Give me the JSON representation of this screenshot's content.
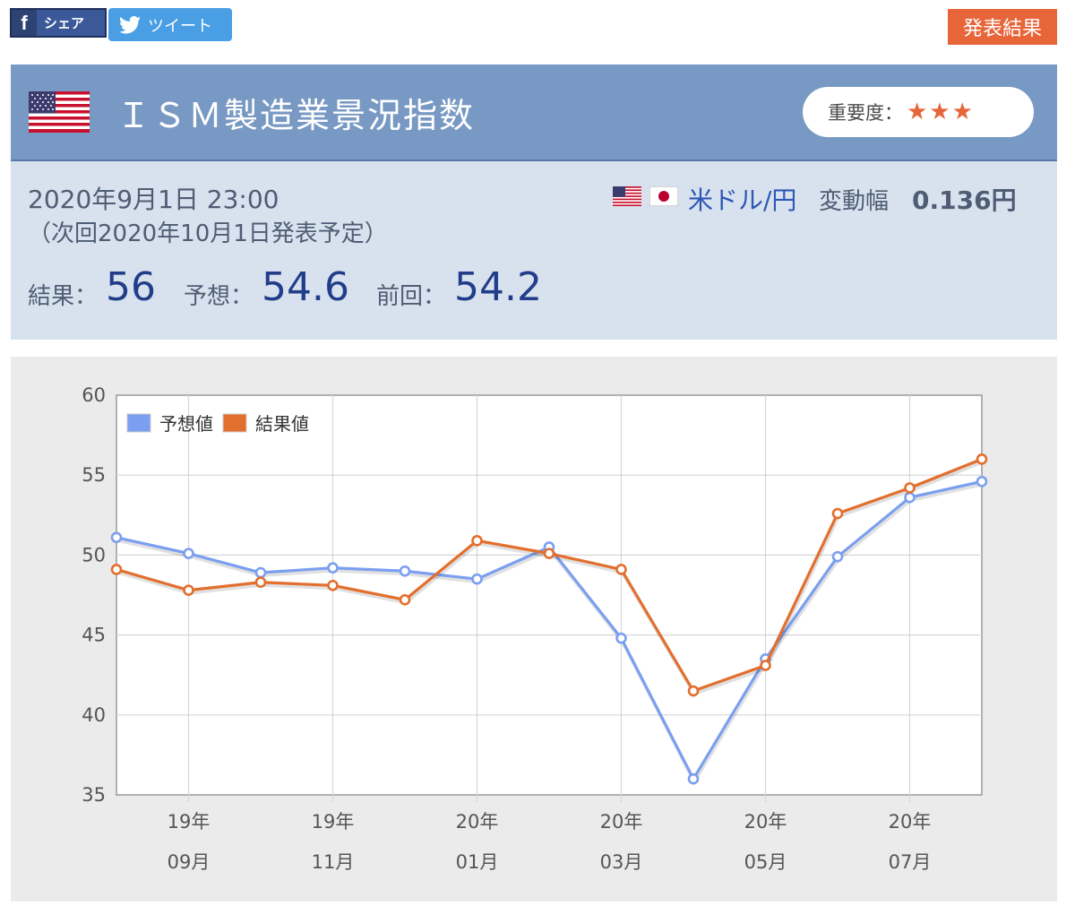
{
  "share": {
    "facebook_icon": "f",
    "facebook_label": "シェア",
    "twitter_label": "ツイート"
  },
  "result_tag": "発表結果",
  "header": {
    "title": "ＩＳＭ製造業景況指数",
    "importance_label": "重要度：",
    "importance_stars": "★★★"
  },
  "info": {
    "date": "2020年9月1日 23:00",
    "next": "（次回2020年10月1日発表予定）",
    "pair": "米ドル/円",
    "range_label": "変動幅",
    "range_value": "0.136円",
    "result_label": "結果：",
    "result_value": "56",
    "forecast_label": "予想：",
    "forecast_value": "54.6",
    "previous_label": "前回：",
    "previous_value": "54.2"
  },
  "colors": {
    "forecast": "#7b9ff0",
    "result": "#e36f2e",
    "accent": "#e8653a",
    "header": "#7899c3"
  },
  "chart_data": {
    "type": "line",
    "ylim": [
      35,
      60
    ],
    "yticks": [
      60,
      55,
      50,
      45,
      40,
      35
    ],
    "xticks": [
      {
        "index": 1,
        "line1": "19年",
        "line2": "09月"
      },
      {
        "index": 3,
        "line1": "19年",
        "line2": "11月"
      },
      {
        "index": 5,
        "line1": "20年",
        "line2": "01月"
      },
      {
        "index": 7,
        "line1": "20年",
        "line2": "03月"
      },
      {
        "index": 9,
        "line1": "20年",
        "line2": "05月"
      },
      {
        "index": 11,
        "line1": "20年",
        "line2": "07月"
      }
    ],
    "x": [
      "2019-08",
      "2019-09",
      "2019-10",
      "2019-11",
      "2019-12",
      "2020-01",
      "2020-02",
      "2020-03",
      "2020-04",
      "2020-05",
      "2020-06",
      "2020-07",
      "2020-08"
    ],
    "series": [
      {
        "name": "予想値",
        "color": "#7b9ff0",
        "values": [
          51.1,
          50.1,
          48.9,
          49.2,
          49.0,
          48.5,
          50.5,
          44.8,
          36.0,
          43.5,
          49.9,
          53.6,
          54.6
        ]
      },
      {
        "name": "結果値",
        "color": "#e36f2e",
        "values": [
          49.1,
          47.8,
          48.3,
          48.1,
          47.2,
          50.9,
          50.1,
          49.1,
          41.5,
          43.1,
          52.6,
          54.2,
          56.0
        ]
      }
    ],
    "grid": true,
    "legend": "top-left"
  }
}
